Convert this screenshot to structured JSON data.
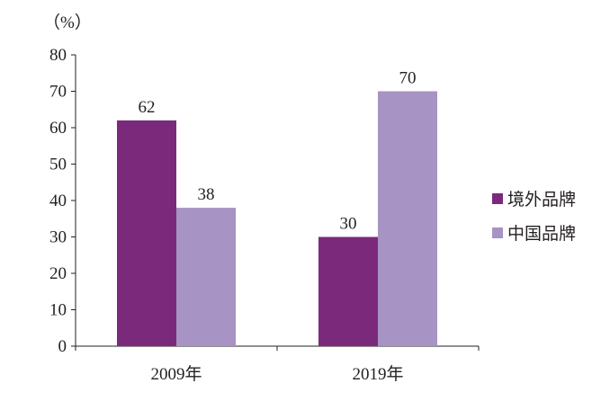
{
  "chart_data": {
    "type": "bar",
    "categories": [
      "2009年",
      "2019年"
    ],
    "series": [
      {
        "name": "境外品牌",
        "values": [
          62,
          30
        ],
        "color": "#7b2a7b"
      },
      {
        "name": "中国品牌",
        "values": [
          38,
          70
        ],
        "color": "#a793c4"
      }
    ],
    "ylabel": "（%）",
    "ylim": [
      0,
      80
    ],
    "yticks": [
      0,
      10,
      20,
      30,
      40,
      50,
      60,
      70,
      80
    ],
    "grid": false,
    "legend_position": "right"
  }
}
